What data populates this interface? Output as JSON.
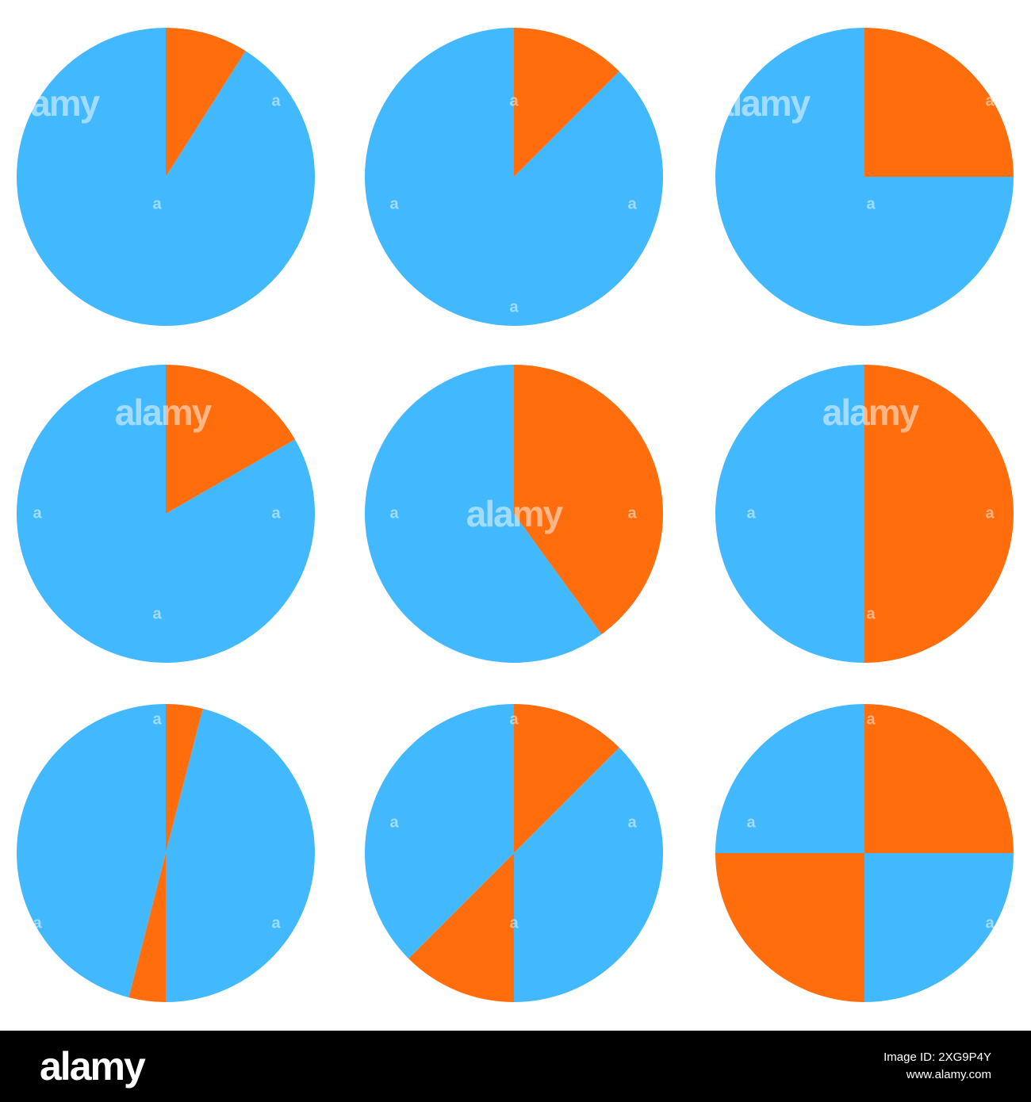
{
  "colors": {
    "blue": "#42B9FE",
    "orange": "#FF6D0D",
    "background": "#FFFFFF",
    "footer": "#000000"
  },
  "chart_data": [
    {
      "type": "pie",
      "slices": [
        {
          "start": 0,
          "end": 0.09,
          "color": "#FF6D0D"
        },
        {
          "start": 0.09,
          "end": 1,
          "color": "#42B9FE"
        }
      ]
    },
    {
      "type": "pie",
      "slices": [
        {
          "start": 0,
          "end": 0.125,
          "color": "#FF6D0D"
        },
        {
          "start": 0.125,
          "end": 1,
          "color": "#42B9FE"
        }
      ]
    },
    {
      "type": "pie",
      "slices": [
        {
          "start": 0,
          "end": 0.25,
          "color": "#FF6D0D"
        },
        {
          "start": 0.25,
          "end": 1,
          "color": "#42B9FE"
        }
      ]
    },
    {
      "type": "pie",
      "slices": [
        {
          "start": 0,
          "end": 0.167,
          "color": "#FF6D0D"
        },
        {
          "start": 0.167,
          "end": 1,
          "color": "#42B9FE"
        }
      ]
    },
    {
      "type": "pie",
      "slices": [
        {
          "start": 0,
          "end": 0.4,
          "color": "#FF6D0D"
        },
        {
          "start": 0.4,
          "end": 1,
          "color": "#42B9FE"
        }
      ]
    },
    {
      "type": "pie",
      "slices": [
        {
          "start": 0,
          "end": 0.5,
          "color": "#FF6D0D"
        },
        {
          "start": 0.5,
          "end": 1,
          "color": "#42B9FE"
        }
      ]
    },
    {
      "type": "pie",
      "slices": [
        {
          "start": 0,
          "end": 0.04,
          "color": "#FF6D0D"
        },
        {
          "start": 0.04,
          "end": 0.5,
          "color": "#42B9FE"
        },
        {
          "start": 0.5,
          "end": 0.54,
          "color": "#FF6D0D"
        },
        {
          "start": 0.54,
          "end": 1,
          "color": "#42B9FE"
        }
      ]
    },
    {
      "type": "pie",
      "slices": [
        {
          "start": 0,
          "end": 0.125,
          "color": "#FF6D0D"
        },
        {
          "start": 0.125,
          "end": 0.5,
          "color": "#42B9FE"
        },
        {
          "start": 0.5,
          "end": 0.625,
          "color": "#FF6D0D"
        },
        {
          "start": 0.625,
          "end": 1,
          "color": "#42B9FE"
        }
      ]
    },
    {
      "type": "pie",
      "slices": [
        {
          "start": 0,
          "end": 0.25,
          "color": "#FF6D0D"
        },
        {
          "start": 0.25,
          "end": 0.5,
          "color": "#42B9FE"
        },
        {
          "start": 0.5,
          "end": 0.75,
          "color": "#FF6D0D"
        },
        {
          "start": 0.75,
          "end": 1,
          "color": "#42B9FE"
        }
      ]
    }
  ],
  "watermark": {
    "word": "alamy",
    "letter": "a"
  },
  "footer": {
    "logo": "alamy",
    "image_id_line": "Image ID: 2XG9P4Y",
    "url": "www.alamy.com"
  }
}
